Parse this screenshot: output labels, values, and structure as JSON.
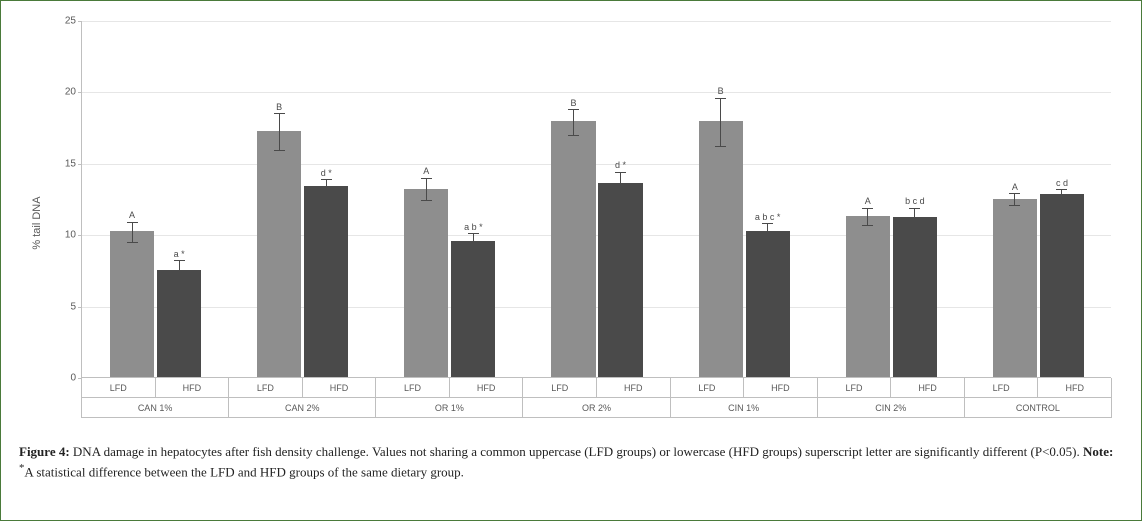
{
  "chart": {
    "type": "bar",
    "y_label": "% tail DNA",
    "y_label_fontsize": 11,
    "y_min": 0,
    "y_max": 25,
    "y_tick_step": 5,
    "y_ticks": [
      0,
      5,
      10,
      15,
      20,
      25
    ],
    "grid_color": "#e6e6e6",
    "axis_color": "#bfbfbf",
    "colors": {
      "lfd": "#8e8e8e",
      "hfd": "#4a4a4a",
      "error": "#4a4a4a"
    },
    "bar_width_ratio": 0.3,
    "bar_gap_ratio": 0.02,
    "group_gap_ratio": 0.04,
    "groups": [
      {
        "name": "CAN 1%",
        "bars": [
          {
            "sub": "LFD",
            "value": 10.2,
            "err": 0.7,
            "label": "A"
          },
          {
            "sub": "HFD",
            "value": 7.5,
            "err": 0.7,
            "label": "a *"
          }
        ]
      },
      {
        "name": "CAN 2%",
        "bars": [
          {
            "sub": "LFD",
            "value": 17.2,
            "err": 1.3,
            "label": "B"
          },
          {
            "sub": "HFD",
            "value": 13.4,
            "err": 0.5,
            "label": "d *"
          }
        ]
      },
      {
        "name": "OR 1%",
        "bars": [
          {
            "sub": "LFD",
            "value": 13.2,
            "err": 0.8,
            "label": "A"
          },
          {
            "sub": "HFD",
            "value": 9.5,
            "err": 0.6,
            "label": "a b *"
          }
        ]
      },
      {
        "name": "OR 2%",
        "bars": [
          {
            "sub": "LFD",
            "value": 17.9,
            "err": 0.9,
            "label": "B"
          },
          {
            "sub": "HFD",
            "value": 13.6,
            "err": 0.8,
            "label": "d *"
          }
        ]
      },
      {
        "name": "CIN 1%",
        "bars": [
          {
            "sub": "LFD",
            "value": 17.9,
            "err": 1.7,
            "label": "B"
          },
          {
            "sub": "HFD",
            "value": 10.2,
            "err": 0.6,
            "label": "a b c *"
          }
        ]
      },
      {
        "name": "CIN 2%",
        "bars": [
          {
            "sub": "LFD",
            "value": 11.3,
            "err": 0.6,
            "label": "A"
          },
          {
            "sub": "HFD",
            "value": 11.2,
            "err": 0.7,
            "label": "b c d"
          }
        ]
      },
      {
        "name": "CONTROL",
        "bars": [
          {
            "sub": "LFD",
            "value": 12.5,
            "err": 0.4,
            "label": "A"
          },
          {
            "sub": "HFD",
            "value": 12.8,
            "err": 0.4,
            "label": "c d"
          }
        ]
      }
    ]
  },
  "caption": {
    "prefix": "Figure 4:",
    "body": " DNA damage in hepatocytes after fish density challenge. Values not sharing a common uppercase (LFD groups) or lowercase (HFD groups) superscript letter are significantly different (P<0.05). ",
    "note_label": "Note: ",
    "note_sup": "*",
    "note_body": "A statistical difference between the LFD and HFD groups of the same dietary group."
  }
}
